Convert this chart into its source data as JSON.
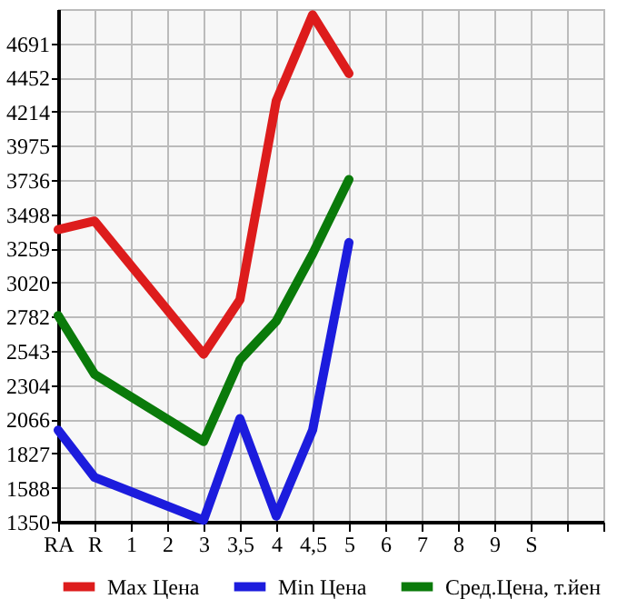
{
  "chart_data": {
    "type": "line",
    "categories": [
      "RA",
      "R",
      "1",
      "2",
      "3",
      "3,5",
      "4",
      "4,5",
      "5",
      "6",
      "7",
      "8",
      "9",
      "S",
      null
    ],
    "series": [
      {
        "name": "Max Цена",
        "color": "#dd1c1c",
        "values": [
          3390,
          3450,
          null,
          null,
          2520,
          2900,
          4290,
          4890,
          4480,
          null,
          null,
          null,
          null,
          null,
          null
        ]
      },
      {
        "name": "Min Цена",
        "color": "#1c1cdd",
        "values": [
          1990,
          1660,
          null,
          null,
          1360,
          2070,
          1390,
          1990,
          3300,
          null,
          null,
          null,
          null,
          null,
          null
        ]
      },
      {
        "name": "Сред.Цена, т.йен",
        "color": "#0a7a0a",
        "values": [
          2790,
          2380,
          null,
          null,
          1910,
          2480,
          2750,
          3220,
          3740,
          null,
          null,
          null,
          null,
          null,
          null
        ]
      }
    ],
    "ylim": [
      1350,
      4930
    ],
    "yticks": [
      1350,
      1588,
      1827,
      2066,
      2304,
      2543,
      2782,
      3020,
      3259,
      3498,
      3736,
      3975,
      4214,
      4452,
      4691
    ],
    "grid": true,
    "legend": "bottom",
    "marker": "none",
    "line_style": "solid"
  }
}
